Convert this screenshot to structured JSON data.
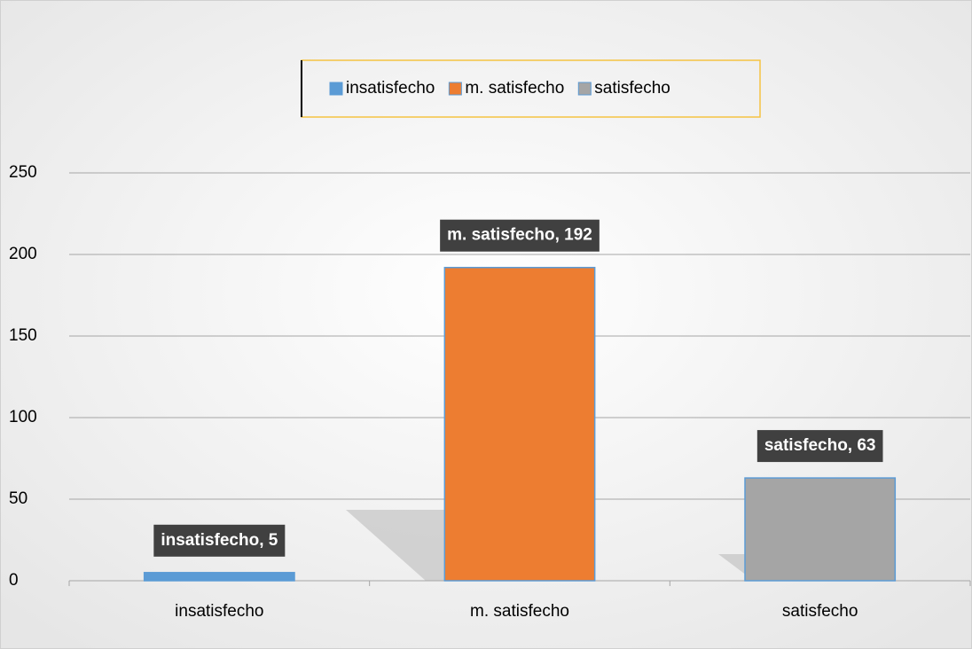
{
  "chart_data": {
    "type": "bar",
    "categories": [
      "insatisfecho",
      "m. satisfecho",
      "satisfecho"
    ],
    "values": [
      5,
      192,
      63
    ],
    "value_labels": [
      "insatisfecho, 5",
      "m. satisfecho, 192",
      "satisfecho, 63"
    ],
    "colors": [
      "#5b9bd5",
      "#ed7d31",
      "#a5a5a5"
    ],
    "ylim": [
      0,
      250
    ],
    "yticks": [
      0,
      50,
      100,
      150,
      200,
      250
    ],
    "grid": true,
    "legend": "top"
  }
}
